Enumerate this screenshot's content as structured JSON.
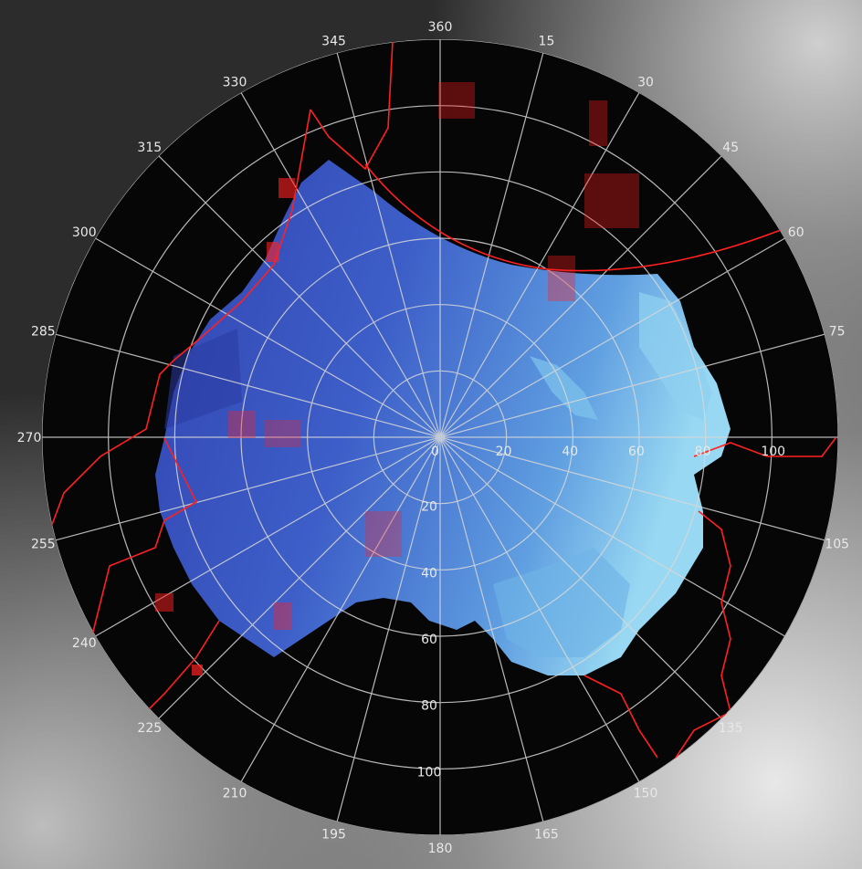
{
  "radar_display": {
    "azimuth_labels": [
      {
        "deg": 360,
        "text": "360"
      },
      {
        "deg": 15,
        "text": "15"
      },
      {
        "deg": 30,
        "text": "30"
      },
      {
        "deg": 45,
        "text": "45"
      },
      {
        "deg": 60,
        "text": "60"
      },
      {
        "deg": 75,
        "text": "75"
      },
      {
        "deg": 90,
        "text": ""
      },
      {
        "deg": 105,
        "text": "105"
      },
      {
        "deg": 120,
        "text": ""
      },
      {
        "deg": 135,
        "text": "135"
      },
      {
        "deg": 150,
        "text": "150"
      },
      {
        "deg": 165,
        "text": "165"
      },
      {
        "deg": 180,
        "text": "180"
      },
      {
        "deg": 195,
        "text": "195"
      },
      {
        "deg": 210,
        "text": "210"
      },
      {
        "deg": 225,
        "text": "225"
      },
      {
        "deg": 240,
        "text": "240"
      },
      {
        "deg": 255,
        "text": "255"
      },
      {
        "deg": 270,
        "text": "270"
      },
      {
        "deg": 285,
        "text": "285"
      },
      {
        "deg": 300,
        "text": "300"
      },
      {
        "deg": 315,
        "text": "315"
      },
      {
        "deg": 330,
        "text": "330"
      },
      {
        "deg": 345,
        "text": "345"
      }
    ],
    "range_rings_km": [
      20,
      40,
      60,
      80,
      100,
      120
    ],
    "range_labels_east": [
      "0",
      "20",
      "40",
      "60",
      "80",
      "100"
    ],
    "range_labels_south": [
      "20",
      "40",
      "60",
      "80",
      "100"
    ],
    "colors": {
      "background_terrain": "#3c3c3c",
      "disk": "#060606",
      "echo_dark": "#3548b8",
      "echo_mid": "#4a7ad8",
      "echo_light": "#8fd0f0",
      "grid": "#d8d8d8",
      "border": "#ff2020"
    }
  }
}
